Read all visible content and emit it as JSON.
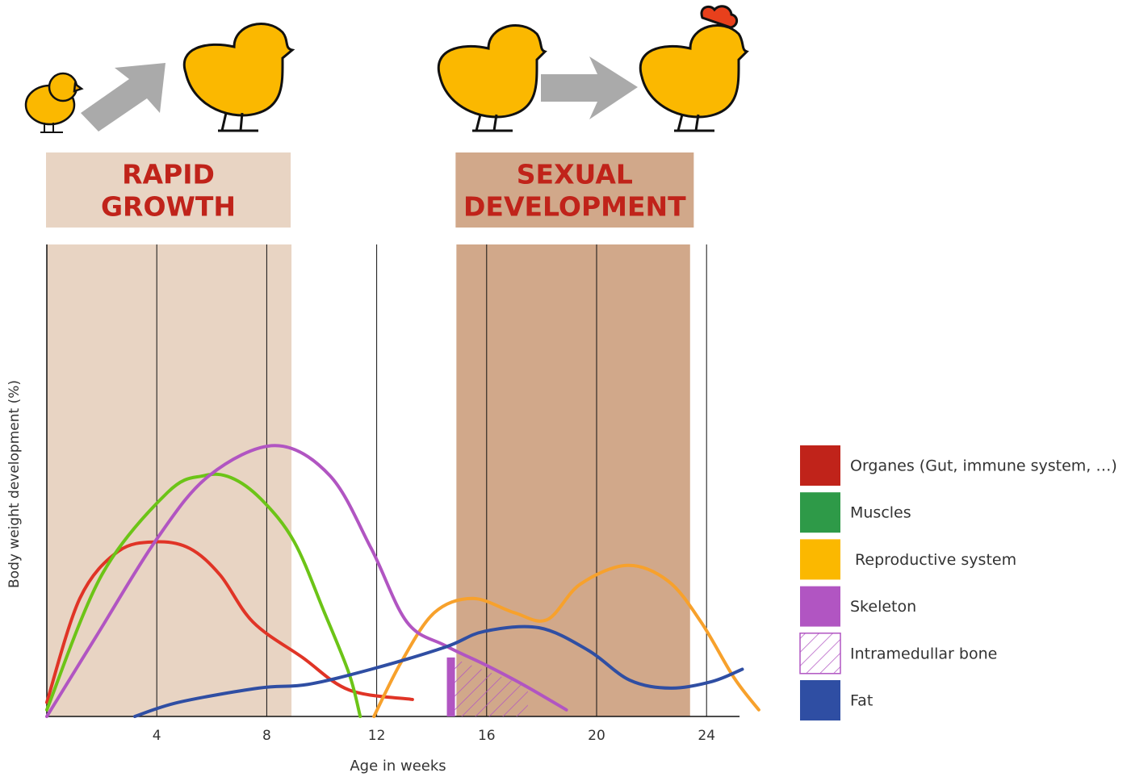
{
  "chart_data": {
    "type": "line",
    "xlabel": "Age in weeks",
    "ylabel": "Body weight development (%)",
    "xlim": [
      0,
      25.2
    ],
    "ylim": [
      0,
      100
    ],
    "xticks": [
      4,
      8,
      12,
      16,
      20,
      24
    ],
    "grid": true,
    "bands": [
      {
        "label": [
          "RAPID",
          "GROWTH"
        ],
        "xlim": [
          0,
          8.9
        ],
        "color": "#e8d4c3"
      },
      {
        "label": [
          "SEXUAL",
          "DEVELOPMENT"
        ],
        "xlim": [
          14.9,
          23.4
        ],
        "color": "#d1a88a"
      }
    ],
    "series": [
      {
        "name": "Organes (Gut, immune system, …)",
        "color": "#e03426",
        "legend_color": "#c0231a",
        "x": [
          0,
          1.2,
          2.6,
          4,
          5.2,
          6.3,
          7.5,
          9.3,
          11,
          13.3
        ],
        "values": [
          3,
          25,
          35,
          37,
          35.6,
          30,
          20,
          12.5,
          5.6,
          3.6
        ]
      },
      {
        "name": "Muscles",
        "color": "#6cc417",
        "legend_color": "#2e9a48",
        "x": [
          0,
          2,
          4.4,
          5.7,
          6.7,
          7.8,
          9,
          10.1,
          11,
          11.4
        ],
        "values": [
          1.4,
          30,
          47.5,
          51,
          50.6,
          46,
          37,
          22,
          9,
          0
        ]
      },
      {
        "name": " Reproductive system",
        "color": "#f7a12c",
        "legend_color": "#fbb800",
        "x": [
          11.9,
          12.9,
          14.1,
          15.5,
          17,
          18.2,
          19.4,
          21.1,
          22.6,
          23.8,
          25,
          25.9
        ],
        "values": [
          0,
          11.6,
          22,
          25,
          22,
          20.5,
          28,
          32,
          28.7,
          20,
          8.2,
          1.4
        ]
      },
      {
        "name": "Skeleton",
        "color": "#b155c2",
        "legend_color": "#b155c2",
        "x": [
          0,
          1.8,
          4,
          5.9,
          8.3,
          10.3,
          11.8,
          13.1,
          14.5,
          16,
          17.4,
          18.9
        ],
        "values": [
          0,
          17,
          37.6,
          51,
          57.4,
          51,
          35.6,
          20,
          15,
          10.8,
          6.5,
          1.4
        ]
      },
      {
        "name": "Intramedullar bone",
        "color": "#b155c2",
        "legend_color": "#b155c2",
        "hatch": true,
        "x": [
          14.7,
          15.6,
          16.5,
          17.5
        ],
        "values": [
          12.5,
          10.5,
          8.5,
          6.3
        ]
      },
      {
        "name": "Fat",
        "color": "#2f4ea3",
        "legend_color": "#2f4ea3",
        "x": [
          3.2,
          4.8,
          7.7,
          9.5,
          11.8,
          14.5,
          15.9,
          17.9,
          19.7,
          21.2,
          22.7,
          24.2,
          25.3
        ],
        "values": [
          0,
          3,
          6,
          6.8,
          10,
          14.7,
          18,
          18.8,
          14,
          7.7,
          6,
          7.4,
          10
        ]
      }
    ]
  }
}
